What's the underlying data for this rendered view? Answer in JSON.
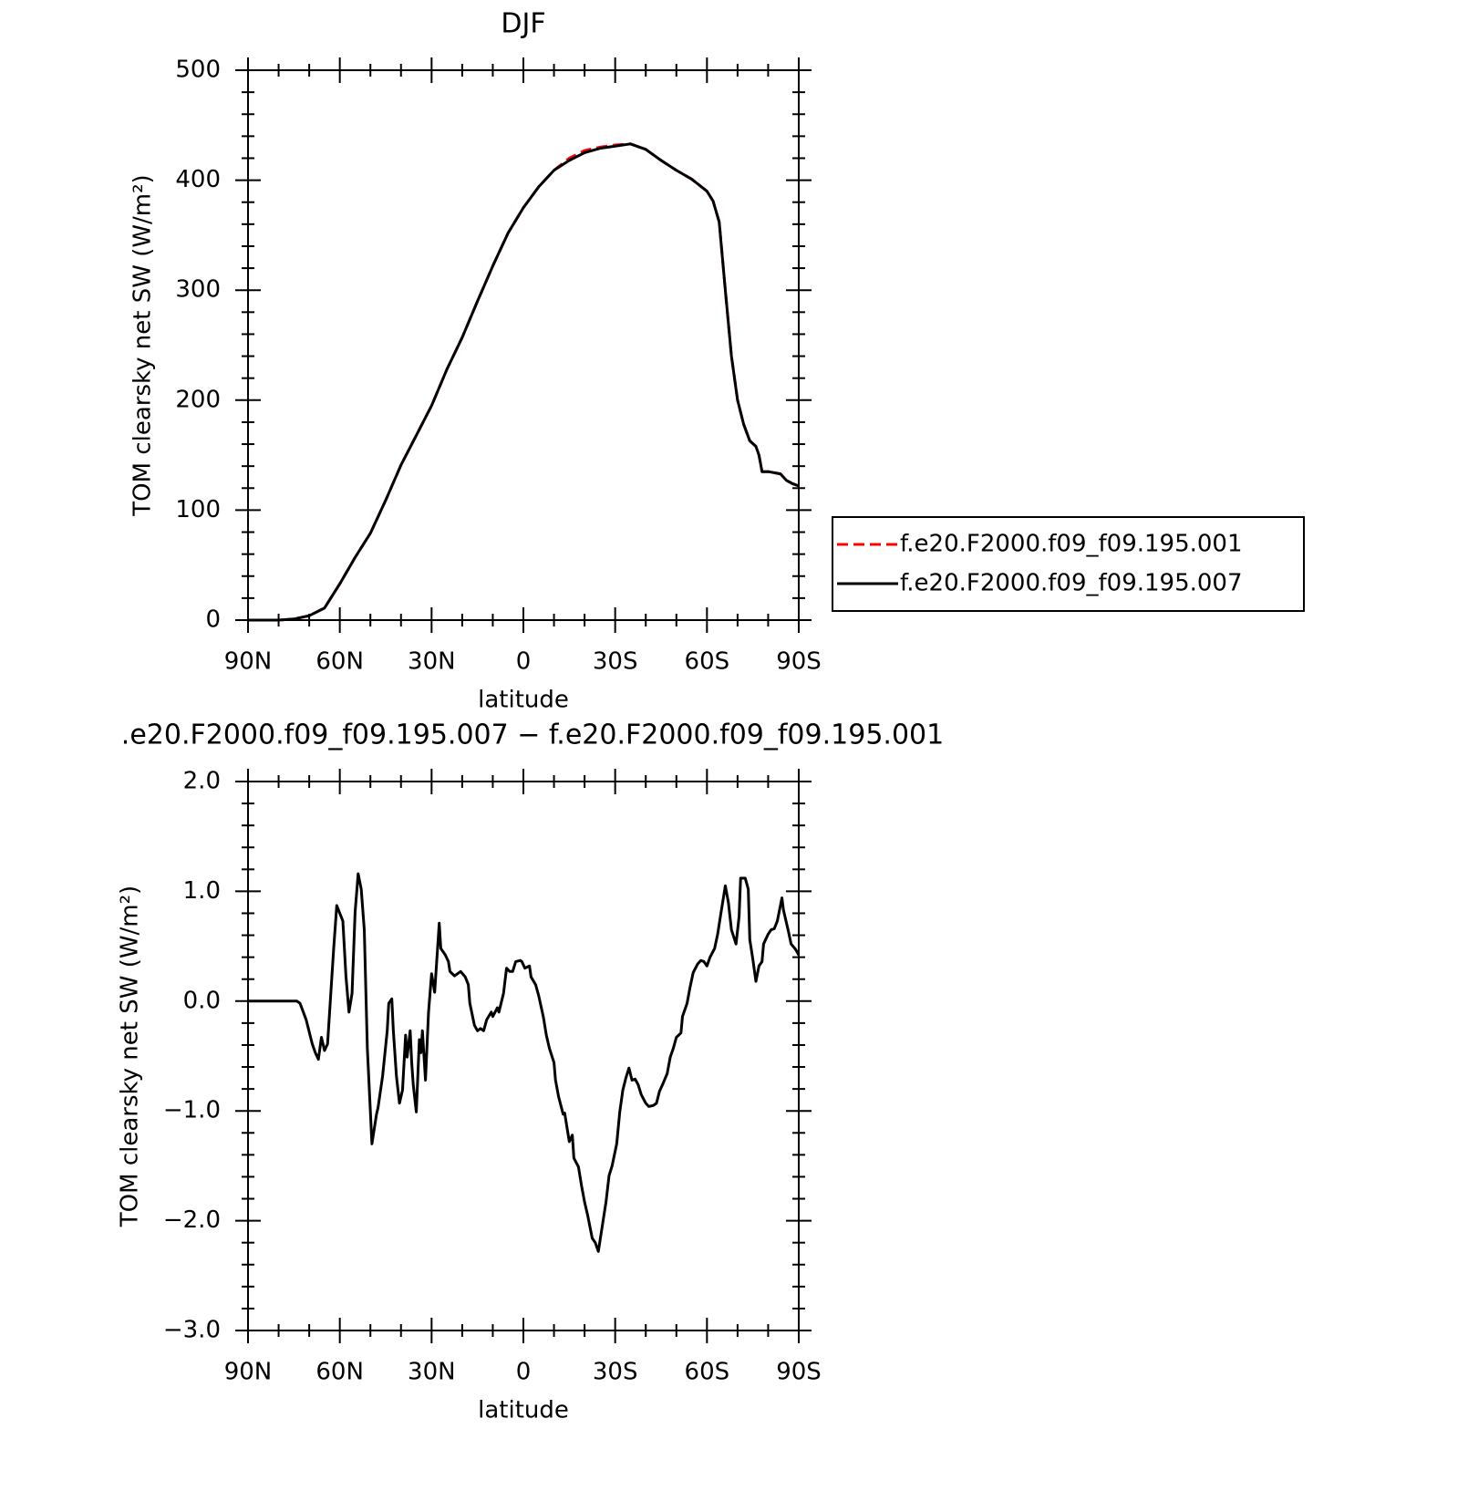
{
  "chart_data": [
    {
      "type": "line",
      "title": "DJF",
      "x_label": "latitude",
      "y_label": "TOM clearsky net SW (W/m²)",
      "x": [
        90,
        85,
        80,
        75,
        70,
        65,
        60,
        55,
        50,
        45,
        40,
        35,
        30,
        25,
        20,
        15,
        10,
        5,
        0,
        -5,
        -10,
        -15,
        -20,
        -25,
        -30,
        -35,
        -40,
        -45,
        -50,
        -55,
        -60,
        -62,
        -64,
        -66,
        -68,
        -70,
        -72,
        -74,
        -76,
        -77,
        -78,
        -80,
        -82,
        -84,
        -86,
        -88,
        -90
      ],
      "series": [
        {
          "name": "f.e20.F2000.f09_f09.195.001",
          "color": "#ff0000",
          "dash": true,
          "values": [
            0,
            0,
            0,
            1,
            4,
            11,
            33,
            57,
            79,
            109,
            141,
            168,
            195,
            228,
            257,
            290,
            322,
            352,
            375,
            394,
            409,
            420,
            427,
            430,
            432,
            433,
            428,
            418,
            409,
            401,
            390,
            381,
            362,
            300,
            240,
            200,
            178,
            163,
            158,
            150,
            135,
            135,
            134,
            133,
            127,
            124,
            122
          ]
        },
        {
          "name": "f.e20.F2000.f09_f09.195.007",
          "color": "#000000",
          "dash": false,
          "values": [
            0,
            0,
            0,
            1,
            4,
            11,
            33,
            57,
            79,
            109,
            141,
            168,
            195,
            228,
            257,
            290,
            322,
            352,
            375,
            394,
            409,
            418,
            425,
            429,
            431,
            433,
            428,
            418,
            409,
            401,
            390,
            381,
            362,
            300,
            240,
            200,
            178,
            163,
            158,
            150,
            135,
            135,
            134,
            133,
            127,
            124,
            122
          ]
        }
      ],
      "xlim": [
        90,
        -90
      ],
      "xticks": [
        {
          "value": 90,
          "label": "90N"
        },
        {
          "value": 60,
          "label": "60N"
        },
        {
          "value": 30,
          "label": "30N"
        },
        0,
        {
          "value": -30,
          "label": "30S"
        },
        {
          "value": -60,
          "label": "60S"
        },
        {
          "value": -90,
          "label": "90S"
        }
      ],
      "ylim": [
        0,
        500
      ],
      "yticks": [
        0,
        100,
        200,
        300,
        400,
        500
      ],
      "legend": "right"
    },
    {
      "type": "line",
      "title": ".e20.F2000.f09_f09.195.007 − f.e20.F2000.f09_f09.195.001",
      "x_label": "latitude",
      "y_label": "TOM clearsky net SW (W/m²)",
      "x": [
        90,
        80,
        74,
        73,
        71,
        69,
        68,
        67,
        66,
        65,
        64,
        62,
        61,
        59,
        58,
        57,
        56,
        55,
        54,
        53,
        52,
        51,
        49.5,
        48,
        47.5,
        46,
        44.5,
        44,
        43,
        42.5,
        41.5,
        40.5,
        39.5,
        38.5,
        38,
        37,
        36.5,
        36,
        35,
        34,
        33.5,
        33,
        32,
        31,
        30,
        29,
        27.5,
        27,
        25.5,
        24.5,
        24,
        22.5,
        21.5,
        20.5,
        19,
        18,
        17.5,
        16,
        15,
        14,
        13,
        12,
        10.5,
        10,
        8.5,
        8,
        6.5,
        5.5,
        4.5,
        3.5,
        2.5,
        1,
        0.5,
        -0.5,
        -2,
        -2.5,
        -4,
        -5,
        -6.5,
        -7.5,
        -8.5,
        -10,
        -10.5,
        -11.5,
        -13,
        -13.5,
        -15,
        -16,
        -16.5,
        -18,
        -19,
        -20,
        -21,
        -22.5,
        -23.5,
        -24.5,
        -26,
        -27,
        -28,
        -29,
        -30.5,
        -31.5,
        -32.5,
        -33.5,
        -34.5,
        -35.5,
        -36.5,
        -37.5,
        -38.5,
        -40,
        -41,
        -42.5,
        -43.5,
        -44.5,
        -45.5,
        -47,
        -48,
        -49,
        -50,
        -51.5,
        -52,
        -53.5,
        -54.5,
        -55.5,
        -57,
        -58,
        -59,
        -60,
        -61,
        -62.5,
        -63.5,
        -64.5,
        -66,
        -67,
        -68,
        -69.5,
        -70.5,
        -71,
        -72.5,
        -73.5,
        -74,
        -75,
        -76,
        -77,
        -78,
        -78.5,
        -80,
        -81,
        -82,
        -83,
        -84.5,
        -85,
        -86.5,
        -87.5,
        -89,
        -90
      ],
      "values": [
        0,
        0,
        0,
        -0.02,
        -0.17,
        -0.39,
        -0.47,
        -0.53,
        -0.33,
        -0.45,
        -0.39,
        0.48,
        0.87,
        0.73,
        0.23,
        -0.1,
        0.07,
        0.81,
        1.16,
        1.02,
        0.65,
        -0.43,
        -1.3,
        -1.03,
        -0.97,
        -0.68,
        -0.27,
        -0.02,
        0.02,
        -0.27,
        -0.68,
        -0.93,
        -0.81,
        -0.31,
        -0.51,
        -0.27,
        -0.56,
        -0.76,
        -1.01,
        -0.35,
        -0.47,
        -0.27,
        -0.72,
        -0.1,
        0.25,
        0.08,
        0.71,
        0.48,
        0.42,
        0.36,
        0.27,
        0.23,
        0.25,
        0.27,
        0.22,
        0.15,
        -0.02,
        -0.22,
        -0.27,
        -0.25,
        -0.27,
        -0.17,
        -0.1,
        -0.14,
        -0.06,
        -0.1,
        0.07,
        0.3,
        0.27,
        0.27,
        0.36,
        0.37,
        0.36,
        0.3,
        0.32,
        0.22,
        0.15,
        0.05,
        -0.14,
        -0.31,
        -0.43,
        -0.56,
        -0.72,
        -0.87,
        -1.03,
        -1.02,
        -1.28,
        -1.22,
        -1.43,
        -1.51,
        -1.68,
        -1.83,
        -1.95,
        -2.16,
        -2.2,
        -2.28,
        -2.01,
        -1.83,
        -1.59,
        -1.5,
        -1.3,
        -1.01,
        -0.81,
        -0.7,
        -0.61,
        -0.72,
        -0.71,
        -0.76,
        -0.85,
        -0.93,
        -0.96,
        -0.95,
        -0.93,
        -0.82,
        -0.76,
        -0.66,
        -0.51,
        -0.43,
        -0.33,
        -0.29,
        -0.14,
        -0.02,
        0.13,
        0.26,
        0.34,
        0.37,
        0.36,
        0.32,
        0.4,
        0.48,
        0.61,
        0.79,
        1.05,
        0.9,
        0.65,
        0.52,
        0.77,
        1.12,
        1.12,
        1.02,
        0.56,
        0.38,
        0.18,
        0.32,
        0.36,
        0.52,
        0.61,
        0.65,
        0.66,
        0.73,
        0.94,
        0.83,
        0.65,
        0.52,
        0.47,
        0.42
      ],
      "color": "#000000",
      "xlim": [
        90,
        -90
      ],
      "xticks": [
        {
          "value": 90,
          "label": "90N"
        },
        {
          "value": 60,
          "label": "60N"
        },
        {
          "value": 30,
          "label": "30N"
        },
        0,
        {
          "value": -30,
          "label": "30S"
        },
        {
          "value": -60,
          "label": "60S"
        },
        {
          "value": -90,
          "label": "90S"
        }
      ],
      "ylim": [
        -3,
        2
      ],
      "yticks": [
        {
          "value": -3,
          "label": "−3.0"
        },
        {
          "value": -2,
          "label": "−2.0"
        },
        {
          "value": -1,
          "label": "−1.0"
        },
        {
          "value": 0,
          "label": "0.0"
        },
        {
          "value": 1,
          "label": "1.0"
        },
        {
          "value": 2,
          "label": "2.0"
        }
      ]
    }
  ]
}
